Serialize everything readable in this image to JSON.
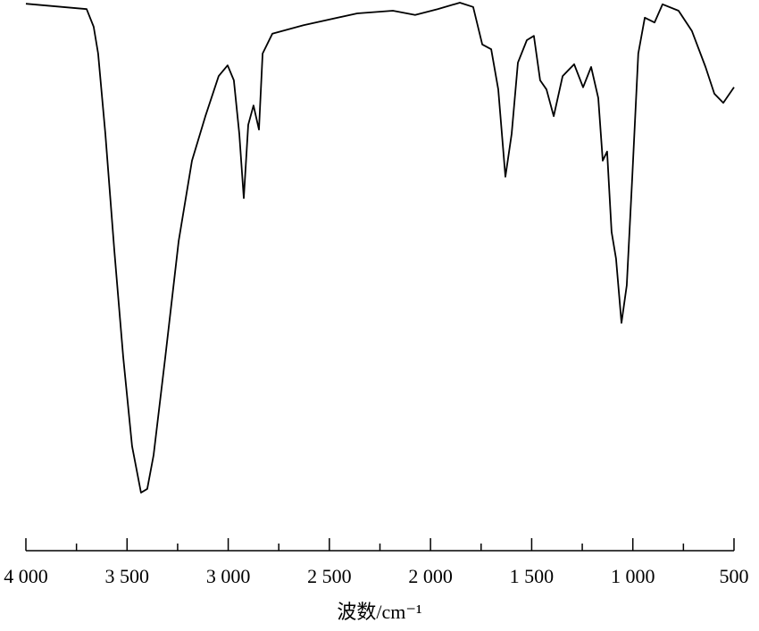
{
  "chart_data": {
    "type": "line",
    "x_label": "波数/cm⁻¹",
    "x": [
      4000,
      3819,
      3700,
      3665,
      3643,
      3607,
      3563,
      3519,
      3475,
      3431,
      3400,
      3369,
      3311,
      3245,
      3179,
      3113,
      3047,
      3003,
      2972,
      2945,
      2923,
      2901,
      2875,
      2848,
      2830,
      2782,
      2628,
      2362,
      2186,
      2076,
      1965,
      1855,
      1789,
      1744,
      1700,
      1665,
      1630,
      1599,
      1568,
      1524,
      1489,
      1458,
      1427,
      1391,
      1347,
      1290,
      1246,
      1206,
      1171,
      1149,
      1127,
      1105,
      1083,
      1056,
      1030,
      1003,
      973,
      941,
      893,
      853,
      774,
      708,
      641,
      597,
      553,
      500
    ],
    "series": [
      {
        "color": "#000000",
        "values": [
          99.3,
          98.7,
          98.3,
          95,
          90,
          75,
          53.3,
          33.3,
          16.7,
          8,
          8.7,
          15,
          33.3,
          55,
          70,
          78.3,
          85.8,
          87.8,
          85,
          75,
          63,
          76.7,
          80.3,
          75.8,
          90,
          93.7,
          95.3,
          97.5,
          98,
          97.2,
          98.3,
          99.5,
          98.7,
          91.7,
          90.8,
          83.3,
          67,
          75,
          88.3,
          92.5,
          93.3,
          85,
          83.3,
          78.3,
          85.8,
          88,
          83.7,
          87.5,
          81.7,
          70,
          71.7,
          56.7,
          51.7,
          39.7,
          46.7,
          66.7,
          90,
          96.7,
          95.8,
          99.2,
          98,
          94.2,
          87.5,
          82.5,
          80.8,
          83.7
        ]
      }
    ],
    "xlim": [
      4000,
      500
    ],
    "ylim": [
      0,
      100
    ],
    "xticks": [
      {
        "value": 4000,
        "label": "4 000"
      },
      {
        "value": 3500,
        "label": "3 500"
      },
      {
        "value": 3000,
        "label": "3 000"
      },
      {
        "value": 2500,
        "label": "2 500"
      },
      {
        "value": 2000,
        "label": "2 000"
      },
      {
        "value": 1500,
        "label": "1 500"
      },
      {
        "value": 1000,
        "label": "1 000"
      },
      500
    ],
    "xminorticks": [
      3750,
      3250,
      2750,
      2250,
      1750,
      1250,
      750
    ]
  }
}
